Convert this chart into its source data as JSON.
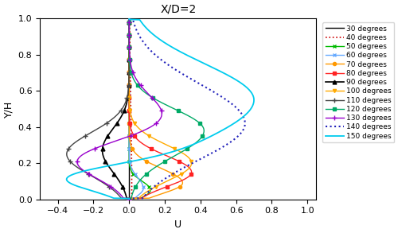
{
  "title": "X/D=2",
  "xlabel": "U",
  "ylabel": "Y/H",
  "xlim": [
    -0.5,
    1.05
  ],
  "ylim": [
    0,
    1
  ],
  "xticks": [
    -0.4,
    -0.2,
    0.0,
    0.2,
    0.4,
    0.6,
    0.8,
    1.0
  ],
  "yticks": [
    0.0,
    0.2,
    0.4,
    0.6,
    0.8,
    1.0
  ],
  "series": [
    {
      "label": "30 degrees",
      "color": "#000000",
      "linestyle": "-",
      "marker": "None",
      "markersize": 3,
      "linewidth": 1.0
    },
    {
      "label": "40 degrees",
      "color": "#cc0000",
      "linestyle": ":",
      "marker": "None",
      "markersize": 3,
      "linewidth": 1.2
    },
    {
      "label": "50 degrees",
      "color": "#00bb00",
      "linestyle": "-",
      "marker": "x",
      "markersize": 3.5,
      "linewidth": 1.0
    },
    {
      "label": "60 degrees",
      "color": "#66aaff",
      "linestyle": "-",
      "marker": "x",
      "markersize": 3.5,
      "linewidth": 1.0
    },
    {
      "label": "70 degrees",
      "color": "#ff9900",
      "linestyle": "-",
      "marker": "o",
      "markersize": 3.0,
      "linewidth": 1.0
    },
    {
      "label": "80 degrees",
      "color": "#ff2222",
      "linestyle": "-",
      "marker": "s",
      "markersize": 3.5,
      "linewidth": 1.0
    },
    {
      "label": "90 degrees",
      "color": "#000000",
      "linestyle": "-",
      "marker": "^",
      "markersize": 3.5,
      "linewidth": 1.2
    },
    {
      "label": "100 degrees",
      "color": "#ffaa00",
      "linestyle": "-",
      "marker": "v",
      "markersize": 3.0,
      "linewidth": 1.0
    },
    {
      "label": "110 degrees",
      "color": "#444444",
      "linestyle": "-",
      "marker": "+",
      "markersize": 4,
      "linewidth": 1.0
    },
    {
      "label": "120 degrees",
      "color": "#00aa66",
      "linestyle": "-",
      "marker": "s",
      "markersize": 3.5,
      "linewidth": 1.0
    },
    {
      "label": "130 degrees",
      "color": "#9900cc",
      "linestyle": "-",
      "marker": "+",
      "markersize": 4,
      "linewidth": 1.0
    },
    {
      "label": "140 degrees",
      "color": "#2222bb",
      "linestyle": ":",
      "marker": "None",
      "markersize": 3,
      "linewidth": 1.5
    },
    {
      "label": "150 degrees",
      "color": "#00ccee",
      "linestyle": "-",
      "marker": "None",
      "markersize": 3,
      "linewidth": 1.3
    }
  ]
}
